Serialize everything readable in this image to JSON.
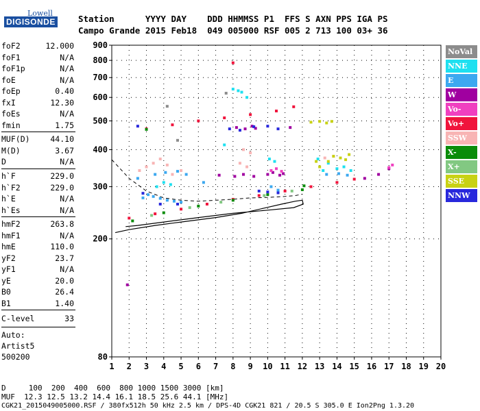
{
  "logo": {
    "brand": "Lowell",
    "product": "DIGISONDE"
  },
  "header": {
    "labels": "Station      YYYY DAY    DDD HHMMSS P1  FFS S AXN PPS IGA PS",
    "values": "Campo Grande 2015 Feb18  049 005000 RSF 005 2 713 100 03+ 36"
  },
  "params_group1": [
    {
      "name": "foF2",
      "value": "12.000"
    },
    {
      "name": "foF1",
      "value": "N/A"
    },
    {
      "name": "foF1p",
      "value": "N/A"
    },
    {
      "name": "foE",
      "value": "N/A"
    },
    {
      "name": "foEp",
      "value": "0.40"
    },
    {
      "name": "fxI",
      "value": "12.30"
    },
    {
      "name": "foEs",
      "value": "N/A"
    },
    {
      "name": "fmin",
      "value": "1.75"
    }
  ],
  "params_group2": [
    {
      "name": "MUF(D)",
      "value": "44.10"
    },
    {
      "name": "M(D)",
      "value": "3.67"
    },
    {
      "name": "D",
      "value": "N/A"
    }
  ],
  "params_group3": [
    {
      "name": "h`F",
      "value": "229.0"
    },
    {
      "name": "h`F2",
      "value": "229.0"
    },
    {
      "name": "h`E",
      "value": "N/A"
    },
    {
      "name": "h`Es",
      "value": "N/A"
    }
  ],
  "params_group4": [
    {
      "name": "hmF2",
      "value": "263.8"
    },
    {
      "name": "hmF1",
      "value": "N/A"
    },
    {
      "name": "hmE",
      "value": "110.0"
    },
    {
      "name": "yF2",
      "value": "23.7"
    },
    {
      "name": "yF1",
      "value": "N/A"
    },
    {
      "name": "yE",
      "value": "20.0"
    },
    {
      "name": "B0",
      "value": "26.4"
    },
    {
      "name": "B1",
      "value": "1.40"
    }
  ],
  "clevel": {
    "name": "C-level",
    "value": "33"
  },
  "autoscaler": {
    "line1": "Auto:",
    "line2": "Artist5",
    "line3": "500200"
  },
  "legend": [
    {
      "label": "NoVal",
      "color": "#8c8c8c"
    },
    {
      "label": "NNE",
      "color": "#1ee0f0"
    },
    {
      "label": "E",
      "color": "#3ca8f0"
    },
    {
      "label": "W",
      "color": "#a000a0"
    },
    {
      "label": "Vo-",
      "color": "#f040c0"
    },
    {
      "label": "Vo+",
      "color": "#f0143c"
    },
    {
      "label": "SSW",
      "color": "#f8b4b4"
    },
    {
      "label": "X-",
      "color": "#0a8c0a"
    },
    {
      "label": "X+",
      "color": "#82c882"
    },
    {
      "label": "SSE",
      "color": "#c8d214"
    },
    {
      "label": "NNW",
      "color": "#2828dc"
    }
  ],
  "footer": {
    "distances": "D     100  200  400  600  800 1000 1500 3000 [km]",
    "muf": "MUF  12.3 12.5 13.2 14.4 16.1 18.5 25.6 44.1 [MHz]",
    "file": "CGK21_2015049005000.RSF / 380fx512h 50 kHz 2.5 km / DPS-4D CGK21 821 / 20.5 S 305.0 E Ion2Png 1.3.20"
  },
  "chart_data": {
    "type": "scatter",
    "title": "",
    "xlabel": "",
    "ylabel": "",
    "xlim": [
      1,
      20
    ],
    "ylim": [
      80,
      900
    ],
    "y_scale": "log",
    "x_ticks": [
      "1",
      "2",
      "3",
      "4",
      "5",
      "6",
      "7",
      "8",
      "9",
      "10",
      "11",
      "12",
      "13",
      "14",
      "15",
      "16",
      "17",
      "18",
      "19",
      "20"
    ],
    "y_ticks": [
      "80",
      "200",
      "300",
      "400",
      "500",
      "600",
      "700",
      "800",
      "900"
    ],
    "y_tick_values": [
      80,
      200,
      300,
      400,
      500,
      600,
      700,
      800,
      900
    ],
    "grid": true,
    "series": [
      {
        "name": "NNE",
        "color": "#1ee0f0",
        "points": [
          [
            8.0,
            640
          ],
          [
            8.3,
            632
          ],
          [
            8.5,
            625
          ],
          [
            8.8,
            600
          ],
          [
            7.5,
            415
          ],
          [
            13.5,
            360
          ],
          [
            14.0,
            345
          ],
          [
            14.4,
            350
          ],
          [
            14.8,
            340
          ],
          [
            13.2,
            340
          ],
          [
            3.6,
            300
          ],
          [
            4.0,
            310
          ],
          [
            4.4,
            305
          ],
          [
            10.1,
            372
          ],
          [
            10.4,
            365
          ],
          [
            12.9,
            372
          ]
        ]
      },
      {
        "name": "E",
        "color": "#3ca8f0",
        "points": [
          [
            2.8,
            275
          ],
          [
            3.1,
            282
          ],
          [
            3.4,
            278
          ],
          [
            3.8,
            274
          ],
          [
            4.2,
            270
          ],
          [
            4.6,
            268
          ],
          [
            5.0,
            266
          ],
          [
            3.5,
            330
          ],
          [
            4.1,
            335
          ],
          [
            4.8,
            338
          ],
          [
            5.3,
            330
          ],
          [
            2.5,
            320
          ],
          [
            6.3,
            310
          ],
          [
            13.4,
            330
          ],
          [
            14.1,
            332
          ],
          [
            14.6,
            328
          ],
          [
            10.2,
            300
          ],
          [
            10.6,
            292
          ]
        ]
      },
      {
        "name": "W",
        "color": "#a000a0",
        "points": [
          [
            8.2,
            475
          ],
          [
            8.7,
            470
          ],
          [
            9.1,
            480
          ],
          [
            9.3,
            472
          ],
          [
            10.0,
            330
          ],
          [
            10.3,
            335
          ],
          [
            10.7,
            328
          ],
          [
            10.9,
            332
          ],
          [
            8.1,
            325
          ],
          [
            8.6,
            330
          ],
          [
            9.2,
            325
          ],
          [
            7.2,
            328
          ],
          [
            15.6,
            320
          ],
          [
            16.4,
            330
          ],
          [
            17.0,
            345
          ],
          [
            1.9,
            140
          ],
          [
            11.3,
            475
          ]
        ]
      },
      {
        "name": "Vo-",
        "color": "#f040c0",
        "points": [
          [
            10.2,
            340
          ],
          [
            10.5,
            345
          ],
          [
            10.8,
            338
          ],
          [
            17.2,
            355
          ],
          [
            17.0,
            348
          ]
        ]
      },
      {
        "name": "Vo+",
        "color": "#f0143c",
        "points": [
          [
            2.0,
            235
          ],
          [
            3.5,
            243
          ],
          [
            5.0,
            252
          ],
          [
            6.5,
            262
          ],
          [
            8.0,
            272
          ],
          [
            9.5,
            280
          ],
          [
            11.0,
            290
          ],
          [
            12.5,
            300
          ],
          [
            14.0,
            310
          ],
          [
            15.0,
            318
          ],
          [
            3.0,
            470
          ],
          [
            4.5,
            485
          ],
          [
            6.0,
            500
          ],
          [
            7.5,
            512
          ],
          [
            9.0,
            525
          ],
          [
            10.5,
            540
          ],
          [
            11.5,
            558
          ],
          [
            8.0,
            785
          ]
        ]
      },
      {
        "name": "SSW",
        "color": "#f8b4b4",
        "points": [
          [
            3.0,
            350
          ],
          [
            3.4,
            360
          ],
          [
            3.8,
            372
          ],
          [
            4.2,
            355
          ],
          [
            2.6,
            340
          ],
          [
            4.5,
            330
          ],
          [
            5.0,
            340
          ],
          [
            8.6,
            400
          ],
          [
            9.0,
            390
          ],
          [
            8.4,
            360
          ],
          [
            8.8,
            350
          ],
          [
            13.3,
            375
          ],
          [
            13.8,
            380
          ]
        ]
      },
      {
        "name": "X-",
        "color": "#0a8c0a",
        "points": [
          [
            2.2,
            230
          ],
          [
            4.0,
            245
          ],
          [
            6.0,
            258
          ],
          [
            8.0,
            270
          ],
          [
            10.0,
            282
          ],
          [
            12.0,
            293
          ],
          [
            3.0,
            468
          ],
          [
            12.1,
            302
          ]
        ]
      },
      {
        "name": "X+",
        "color": "#82c882",
        "points": [
          [
            3.3,
            240
          ],
          [
            5.5,
            255
          ],
          [
            7.3,
            266
          ],
          [
            9.8,
            280
          ],
          [
            11.4,
            290
          ]
        ]
      },
      {
        "name": "SSE",
        "color": "#c8d214",
        "points": [
          [
            12.5,
            495
          ],
          [
            13.0,
            498
          ],
          [
            13.4,
            492
          ],
          [
            13.7,
            498
          ],
          [
            13.8,
            380
          ],
          [
            14.2,
            375
          ],
          [
            14.5,
            370
          ],
          [
            13.5,
            365
          ],
          [
            14.7,
            385
          ],
          [
            12.8,
            365
          ],
          [
            13.0,
            350
          ]
        ]
      },
      {
        "name": "NNW",
        "color": "#2828dc",
        "points": [
          [
            2.5,
            480
          ],
          [
            7.8,
            470
          ],
          [
            8.4,
            465
          ],
          [
            9.2,
            478
          ],
          [
            10.0,
            480
          ],
          [
            10.6,
            470
          ],
          [
            9.5,
            290
          ],
          [
            10.0,
            288
          ],
          [
            10.6,
            286
          ],
          [
            3.8,
            262
          ],
          [
            4.8,
            262
          ],
          [
            2.8,
            285
          ]
        ]
      },
      {
        "name": "NoVal",
        "color": "#8c8c8c",
        "points": [
          [
            4.2,
            560
          ],
          [
            4.8,
            430
          ],
          [
            7.6,
            620
          ]
        ]
      }
    ],
    "profile_curve": [
      [
        1.2,
        210
      ],
      [
        2.0,
        215
      ],
      [
        3.5,
        222
      ],
      [
        5.0,
        228
      ],
      [
        7.0,
        236
      ],
      [
        8.5,
        244
      ],
      [
        9.8,
        254
      ],
      [
        10.8,
        262
      ],
      [
        11.6,
        268
      ],
      [
        12.0,
        270
      ],
      [
        12.05,
        262
      ],
      [
        11.5,
        255
      ],
      [
        10.0,
        250
      ],
      [
        8.0,
        244
      ],
      [
        6.0,
        236
      ],
      [
        4.0,
        228
      ],
      [
        2.5,
        222
      ],
      [
        1.8,
        220
      ]
    ],
    "dashed_curve": [
      [
        1.0,
        370
      ],
      [
        2.0,
        320
      ],
      [
        3.0,
        290
      ],
      [
        4.0,
        275
      ],
      [
        5.0,
        270
      ],
      [
        6.0,
        268
      ],
      [
        7.0,
        270
      ],
      [
        8.0,
        272
      ],
      [
        9.0,
        275
      ],
      [
        10.0,
        276
      ],
      [
        11.0,
        278
      ],
      [
        11.6,
        280
      ],
      [
        12.0,
        283
      ]
    ]
  }
}
